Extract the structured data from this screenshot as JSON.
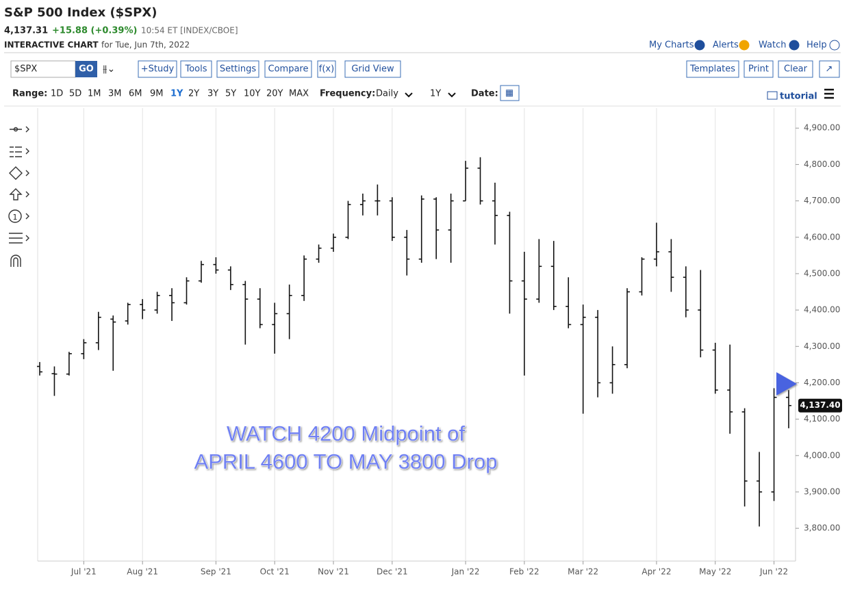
{
  "header": {
    "title": "S&P 500 Index ($SPX)",
    "price": "4,137.31",
    "change": "+15.88 (+0.39%)",
    "time": "10:54 ET [INDEX/CBOE]",
    "chart_label": "INTERACTIVE CHART",
    "chart_date": "for Tue, Jun 7th, 2022"
  },
  "links": [
    "My Charts",
    "Alerts",
    "Watch",
    "Help"
  ],
  "toolbar": {
    "symbol": "$SPX",
    "go": "GO",
    "buttons": [
      "+Study",
      "Tools",
      "Settings",
      "Compare",
      "f(x)",
      "Grid View"
    ],
    "right_buttons": [
      "Templates",
      "Print",
      "Clear"
    ]
  },
  "range_bar": {
    "range_label": "Range:",
    "ranges": [
      "1D",
      "5D",
      "1M",
      "3M",
      "6M",
      "9M",
      "1Y",
      "2Y",
      "3Y",
      "5Y",
      "10Y",
      "20Y",
      "MAX"
    ],
    "selected": "1Y",
    "frequency_label": "Frequency:",
    "frequency": "Daily",
    "period": "1Y",
    "date_label": "Date:",
    "tutorial": "tutorial"
  },
  "chart_data": {
    "type": "ohlc",
    "color": "#111111",
    "categories": [
      null,
      null,
      null,
      "Jul '21",
      null,
      null,
      null,
      "Aug '21",
      null,
      null,
      null,
      null,
      "Sep '21",
      null,
      null,
      null,
      "Oct '21",
      null,
      null,
      null,
      "Nov '21",
      null,
      null,
      null,
      "Dec '21",
      null,
      null,
      null,
      null,
      "Jan '22",
      null,
      null,
      null,
      "Feb '22",
      null,
      null,
      null,
      "Mar '22",
      null,
      null,
      null,
      null,
      "Apr '22",
      null,
      null,
      null,
      "May '22",
      null,
      null,
      null,
      "Jun '22",
      null
    ],
    "open": [
      4245,
      4225,
      4224,
      4280,
      4310,
      4375,
      4370,
      4415,
      4400,
      4440,
      4420,
      4480,
      4525,
      4510,
      4470,
      4430,
      4360,
      4390,
      4440,
      4540,
      4570,
      4600,
      4690,
      4700,
      4700,
      4600,
      4540,
      4705,
      4620,
      4700,
      4790,
      4700,
      4660,
      4480,
      4430,
      4520,
      4410,
      4360,
      4380,
      4200,
      4250,
      4450,
      4540,
      4560,
      4490,
      4400,
      4290,
      4180,
      4120,
      3930,
      3900,
      4160
    ],
    "high": [
      4257,
      4245,
      4285,
      4320,
      4395,
      4385,
      4420,
      4430,
      4450,
      4460,
      4490,
      4535,
      4545,
      4520,
      4480,
      4460,
      4420,
      4470,
      4550,
      4580,
      4610,
      4700,
      4720,
      4745,
      4710,
      4620,
      4715,
      4710,
      4720,
      4810,
      4820,
      4750,
      4670,
      4560,
      4595,
      4590,
      4490,
      4415,
      4400,
      4300,
      4460,
      4545,
      4640,
      4595,
      4520,
      4510,
      4310,
      4305,
      4130,
      4010,
      4185,
      4180
    ],
    "low": [
      4220,
      4164,
      4220,
      4265,
      4290,
      4233,
      4360,
      4375,
      4390,
      4370,
      4415,
      4475,
      4500,
      4455,
      4305,
      4350,
      4280,
      4320,
      4425,
      4530,
      4560,
      4595,
      4660,
      4660,
      4590,
      4495,
      4530,
      4540,
      4530,
      4700,
      4690,
      4580,
      4390,
      4220,
      4420,
      4400,
      4350,
      4115,
      4160,
      4170,
      4240,
      4440,
      4520,
      4450,
      4380,
      4270,
      4170,
      4060,
      3860,
      3805,
      3875,
      4075
    ],
    "close": [
      4230,
      4224,
      4280,
      4310,
      4380,
      4367,
      4415,
      4400,
      4440,
      4420,
      4480,
      4525,
      4510,
      4470,
      4430,
      4360,
      4390,
      4440,
      4540,
      4570,
      4600,
      4690,
      4700,
      4700,
      4600,
      4540,
      4705,
      4620,
      4700,
      4790,
      4700,
      4660,
      4480,
      4430,
      4520,
      4410,
      4360,
      4380,
      4200,
      4250,
      4450,
      4540,
      4560,
      4490,
      4400,
      4290,
      4180,
      4120,
      3930,
      3900,
      4160,
      4137.4
    ],
    "last_label": "4,137.40",
    "ylim": [
      3710,
      4955
    ],
    "yticks": [
      {
        "value": 3800,
        "label": "3,800.00"
      },
      {
        "value": 3900,
        "label": "3,900.00"
      },
      {
        "value": 4000,
        "label": "4,000.00"
      },
      {
        "value": 4100,
        "label": "4,100.00"
      },
      {
        "value": 4200,
        "label": "4,200.00"
      },
      {
        "value": 4300,
        "label": "4,300.00"
      },
      {
        "value": 4400,
        "label": "4,400.00"
      },
      {
        "value": 4500,
        "label": "4,500.00"
      },
      {
        "value": 4600,
        "label": "4,600.00"
      },
      {
        "value": 4700,
        "label": "4,700.00"
      },
      {
        "value": 4800,
        "label": "4,800.00"
      },
      {
        "value": 4900,
        "label": "4,900.00"
      }
    ],
    "annotations": [
      "WATCH 4200 Midpoint of",
      "APRIL 4600 TO MAY 3800 Drop"
    ]
  }
}
